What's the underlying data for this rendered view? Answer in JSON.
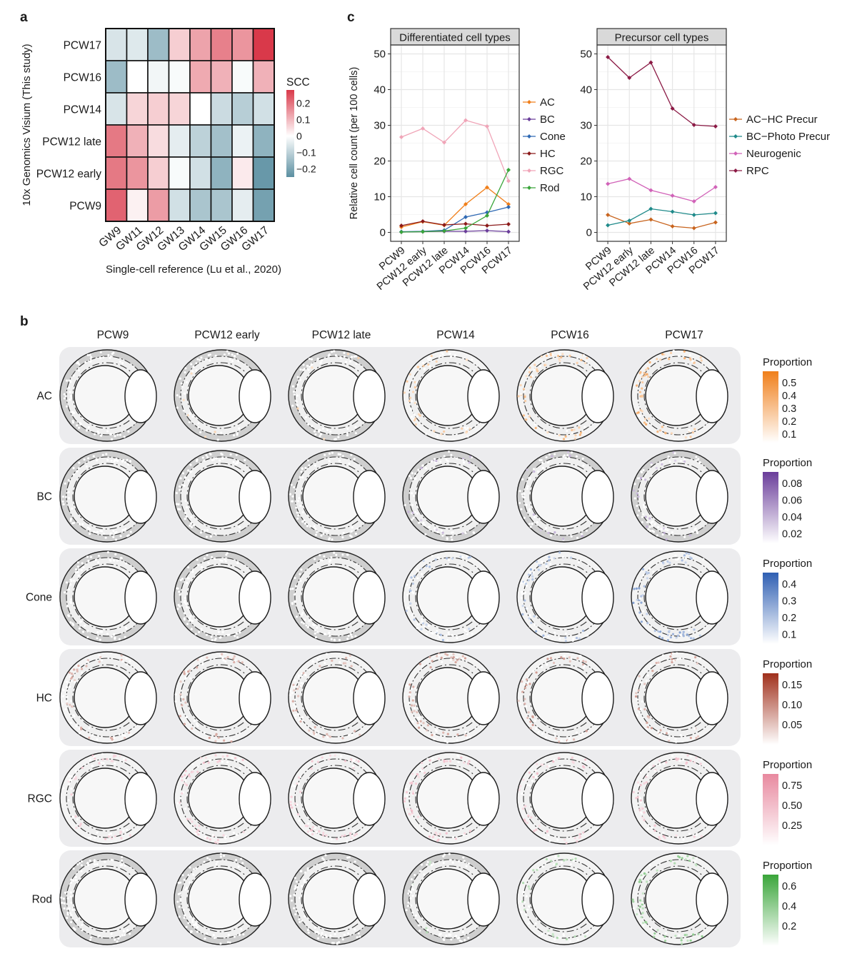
{
  "panel_labels": {
    "a": "a",
    "b": "b",
    "c": "c"
  },
  "chart_data": [
    {
      "id": "a",
      "type": "heatmap",
      "title": "",
      "xlabel": "Single-cell reference (Lu et al., 2020)",
      "ylabel": "10x Genomics Visium (This study)",
      "x_categories": [
        "GW9",
        "GW11",
        "GW12",
        "GW13",
        "GW14",
        "GW15",
        "GW16",
        "GW17"
      ],
      "y_categories": [
        "PCW17",
        "PCW16",
        "PCW14",
        "PCW12 late",
        "PCW12 early",
        "PCW9"
      ],
      "values": [
        [
          -0.06,
          -0.05,
          -0.15,
          0.07,
          0.13,
          0.18,
          0.15,
          0.28
        ],
        [
          -0.15,
          0.0,
          -0.02,
          -0.01,
          0.12,
          0.11,
          -0.01,
          0.11
        ],
        [
          -0.06,
          0.06,
          0.07,
          0.06,
          0.0,
          -0.08,
          -0.11,
          -0.07
        ],
        [
          0.19,
          0.11,
          0.05,
          -0.04,
          -0.1,
          -0.14,
          -0.03,
          -0.17
        ],
        [
          0.19,
          0.15,
          0.07,
          -0.01,
          -0.07,
          -0.17,
          0.03,
          -0.23
        ],
        [
          0.22,
          0.02,
          0.14,
          -0.07,
          -0.13,
          -0.13,
          -0.04,
          -0.21
        ]
      ],
      "legend": {
        "title": "SCC",
        "ticks": [
          0.2,
          0.1,
          0,
          -0.1,
          -0.2
        ],
        "tick_labels": [
          "0.2",
          "0.1",
          "0",
          "−0.1",
          "−0.2"
        ],
        "range": [
          -0.25,
          0.28
        ],
        "low_color": "#5b8fa1",
        "mid_color": "#ffffff",
        "high_color": "#d9394a",
        "placement": "right"
      }
    },
    {
      "id": "c-differentiated",
      "type": "line",
      "title": "Differentiated cell types",
      "xlabel": "",
      "ylabel": "Relative cell count (per 100 cells)",
      "categories": [
        "PCW9",
        "PCW12 early",
        "PCW12 late",
        "PCW14",
        "PCW16",
        "PCW17"
      ],
      "ylim": [
        -2.5,
        52.5
      ],
      "yticks": [
        0,
        10,
        20,
        30,
        40,
        50
      ],
      "grid": true,
      "legend_placement": "right",
      "series": [
        {
          "name": "AC",
          "color": "#f07f1a",
          "values": [
            1.5,
            3.0,
            2.0,
            7.9,
            12.6,
            7.9
          ]
        },
        {
          "name": "BC",
          "color": "#6a3d9a",
          "values": [
            0.1,
            0.2,
            0.3,
            0.3,
            0.5,
            0.2
          ]
        },
        {
          "name": "Cone",
          "color": "#2f69b3",
          "values": [
            0.2,
            0.3,
            0.6,
            4.3,
            5.6,
            7.1
          ]
        },
        {
          "name": "HC",
          "color": "#8b1a1a",
          "values": [
            1.9,
            3.1,
            2.1,
            2.4,
            1.9,
            2.3
          ]
        },
        {
          "name": "RGC",
          "color": "#f0a5b8",
          "values": [
            26.7,
            29.1,
            25.2,
            31.4,
            29.7,
            14.4
          ]
        },
        {
          "name": "Rod",
          "color": "#3aa53a",
          "values": [
            0.1,
            0.2,
            0.4,
            1.2,
            4.7,
            17.5
          ]
        }
      ]
    },
    {
      "id": "c-precursor",
      "type": "line",
      "title": "Precursor cell types",
      "xlabel": "",
      "ylabel": "",
      "categories": [
        "PCW9",
        "PCW12 early",
        "PCW12 late",
        "PCW14",
        "PCW16",
        "PCW17"
      ],
      "ylim": [
        -2.5,
        52.5
      ],
      "yticks": [
        0,
        10,
        20,
        30,
        40,
        50
      ],
      "grid": true,
      "legend_placement": "right",
      "series": [
        {
          "name": "AC−HC Precur",
          "color": "#c8641e",
          "values": [
            4.9,
            2.5,
            3.6,
            1.7,
            1.2,
            2.8
          ]
        },
        {
          "name": "BC−Photo Precur",
          "color": "#1f8a8a",
          "values": [
            2.0,
            3.3,
            6.6,
            5.8,
            4.9,
            5.4
          ]
        },
        {
          "name": "Neurogenic",
          "color": "#d162b8",
          "values": [
            13.6,
            15.0,
            11.8,
            10.3,
            8.7,
            12.7
          ]
        },
        {
          "name": "RPC",
          "color": "#8b1a45",
          "values": [
            49.1,
            43.3,
            47.6,
            34.7,
            30.1,
            29.7
          ]
        }
      ]
    },
    {
      "id": "b",
      "type": "heatmap",
      "title": "",
      "note": "Spatial eye maps; intensity = relative estimated proportion level per cell (0–1 of legend max), qualitative",
      "columns": [
        "PCW9",
        "PCW12 early",
        "PCW12 late",
        "PCW14",
        "PCW16",
        "PCW17"
      ],
      "rows": [
        {
          "name": "AC",
          "color": "#f07f1a",
          "legend_ticks": [
            "0.5",
            "0.4",
            "0.3",
            "0.2",
            "0.1"
          ],
          "intensity": [
            0.0,
            0.08,
            0.05,
            0.35,
            0.6,
            0.7
          ]
        },
        {
          "name": "BC",
          "color": "#6a3d9a",
          "legend_ticks": [
            "0.08",
            "0.06",
            "0.04",
            "0.02"
          ],
          "intensity": [
            0.0,
            0.0,
            0.0,
            0.15,
            0.2,
            0.12
          ]
        },
        {
          "name": "Cone",
          "color": "#2f5fb3",
          "legend_ticks": [
            "0.4",
            "0.3",
            "0.2",
            "0.1"
          ],
          "intensity": [
            0.0,
            0.0,
            0.0,
            0.35,
            0.45,
            0.6
          ]
        },
        {
          "name": "HC",
          "color": "#a0301c",
          "legend_ticks": [
            "0.15",
            "0.10",
            "0.05"
          ],
          "intensity": [
            0.3,
            0.4,
            0.35,
            0.4,
            0.45,
            0.45
          ]
        },
        {
          "name": "RGC",
          "color": "#e8899f",
          "legend_ticks": [
            "0.75",
            "0.50",
            "0.25"
          ],
          "intensity": [
            0.4,
            0.45,
            0.45,
            0.55,
            0.55,
            0.5
          ]
        },
        {
          "name": "Rod",
          "color": "#3aa53a",
          "legend_ticks": [
            "0.6",
            "0.4",
            "0.2"
          ],
          "intensity": [
            0.0,
            0.0,
            0.0,
            0.05,
            0.3,
            0.6
          ]
        }
      ],
      "legend_title": "Proportion"
    }
  ]
}
